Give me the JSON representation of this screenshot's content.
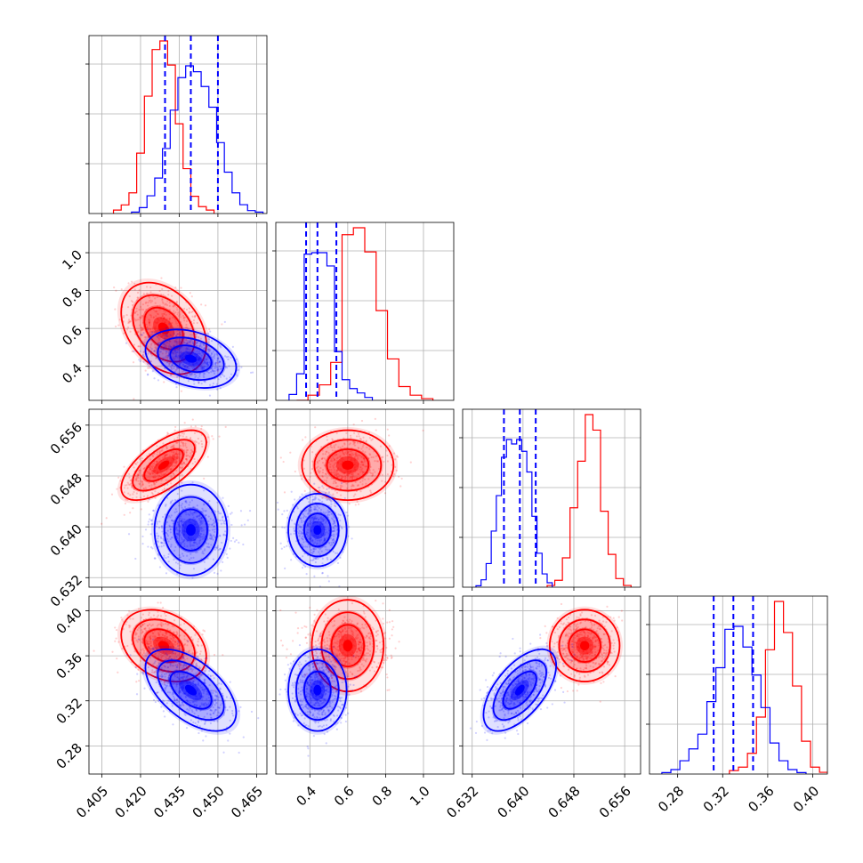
{
  "chart_data": {
    "type": "corner",
    "n_params": 4,
    "grid": true,
    "colors": {
      "series_a": "#ff0000",
      "series_b": "#0000ff",
      "frame": "#000000",
      "grid": "#b0b0b0"
    },
    "series": [
      {
        "color": "#ff0000",
        "params": [
          {
            "mean": 0.429,
            "sd": 0.0075
          },
          {
            "mean": 0.6,
            "sd": 0.11
          },
          {
            "mean": 0.6497,
            "sd": 0.0025
          },
          {
            "mean": 0.369,
            "sd": 0.0145
          }
        ],
        "corr": [
          [
            1,
            -0.35,
            0.65,
            -0.3
          ],
          [
            -0.35,
            1,
            0,
            0
          ],
          [
            0.65,
            0,
            1,
            0
          ],
          [
            -0.3,
            0,
            0,
            1
          ]
        ],
        "hist1d": [
          {
            "bins": [
              0.4095,
              0.4125,
              0.4155,
              0.4185,
              0.4215,
              0.4245,
              0.4275,
              0.4305,
              0.4335,
              0.4365,
              0.4395,
              0.4425,
              0.4455
            ],
            "counts": [
              2,
              5,
              12,
              35,
              68,
              95,
              100,
              86,
              52,
              26,
              10,
              4,
              2
            ]
          },
          {
            "bins": [
              0.33,
              0.39,
              0.45,
              0.51,
              0.57,
              0.63,
              0.69,
              0.75,
              0.81,
              0.87,
              0.93,
              0.99
            ],
            "counts": [
              0,
              3,
              9,
              22,
              96,
              100,
              86,
              52,
              24,
              8,
              3,
              1
            ]
          },
          {
            "bins": [
              0.6438,
              0.645,
              0.6462,
              0.6474,
              0.6486,
              0.6498,
              0.651,
              0.6522,
              0.6534,
              0.6546,
              0.6558
            ],
            "counts": [
              1,
              4,
              17,
              46,
              73,
              100,
              91,
              44,
              19,
              5,
              1
            ]
          },
          {
            "bins": [
              0.326,
              0.334,
              0.342,
              0.35,
              0.358,
              0.366,
              0.374,
              0.382,
              0.39,
              0.398,
              0.406
            ],
            "counts": [
              2,
              4,
              12,
              33,
              72,
              100,
              82,
              51,
              19,
              4,
              1
            ]
          }
        ]
      },
      {
        "color": "#0000ff",
        "params": [
          {
            "mean": 0.4395,
            "sd": 0.008
          },
          {
            "mean": 0.44,
            "sd": 0.07
          },
          {
            "mean": 0.6395,
            "sd": 0.0026
          },
          {
            "mean": 0.3295,
            "sd": 0.0165
          }
        ],
        "corr": [
          [
            1,
            -0.3,
            0,
            -0.55
          ],
          [
            -0.3,
            1,
            0,
            0
          ],
          [
            0,
            0,
            1,
            0.6
          ],
          [
            -0.55,
            0,
            0.6,
            1
          ]
        ],
        "quantiles": [
          [
            0.4295,
            0.4395,
            0.45
          ],
          [
            0.38,
            0.44,
            0.54
          ],
          [
            0.637,
            0.6395,
            0.642
          ],
          [
            0.312,
            0.3295,
            0.347
          ]
        ],
        "hist1d": [
          {
            "bins": [
              0.4165,
              0.4195,
              0.4225,
              0.4255,
              0.4285,
              0.4315,
              0.4345,
              0.4375,
              0.4405,
              0.4435,
              0.4465,
              0.4495,
              0.4525,
              0.4555,
              0.4585,
              0.4615,
              0.4645
            ],
            "counts": [
              1,
              4,
              12,
              24,
              44,
              70,
              92,
              100,
              96,
              86,
              72,
              48,
              28,
              14,
              6,
              2,
              1
            ]
          },
          {
            "bins": [
              0.29,
              0.33,
              0.37,
              0.41,
              0.45,
              0.49,
              0.53,
              0.57,
              0.61,
              0.65,
              0.69
            ],
            "counts": [
              4,
              18,
              99,
              100,
              100,
              91,
              33,
              14,
              8,
              5,
              2
            ]
          },
          {
            "bins": [
              0.6326,
              0.6334,
              0.6342,
              0.635,
              0.6358,
              0.6366,
              0.6374,
              0.6382,
              0.639,
              0.6398,
              0.6406,
              0.6414,
              0.6422,
              0.643,
              0.6438
            ],
            "counts": [
              1,
              5,
              16,
              38,
              62,
              88,
              100,
              97,
              100,
              92,
              78,
              48,
              23,
              9,
              3
            ]
          },
          {
            "bins": [
              0.266,
              0.274,
              0.282,
              0.29,
              0.298,
              0.306,
              0.314,
              0.322,
              0.33,
              0.338,
              0.346,
              0.354,
              0.362,
              0.37,
              0.378,
              0.386
            ],
            "counts": [
              1,
              3,
              9,
              17,
              27,
              49,
              72,
              98,
              100,
              86,
              67,
              45,
              21,
              9,
              3,
              1
            ]
          }
        ]
      }
    ],
    "axes": [
      {
        "range": [
          0.4,
          0.469
        ],
        "ticks": [
          0.405,
          0.42,
          0.435,
          0.45,
          0.465
        ],
        "tick_labels": [
          "0.405",
          "0.420",
          "0.435",
          "0.450",
          "0.465"
        ]
      },
      {
        "range": [
          0.22,
          1.16
        ],
        "ticks": [
          0.4,
          0.6,
          0.8,
          1.0
        ],
        "tick_labels": [
          "0.4",
          "0.6",
          "0.8",
          "1.0"
        ]
      },
      {
        "range": [
          0.6305,
          0.6585
        ],
        "ticks": [
          0.632,
          0.64,
          0.648,
          0.656
        ],
        "tick_labels": [
          "0.632",
          "0.640",
          "0.648",
          "0.656"
        ]
      },
      {
        "range": [
          0.255,
          0.413
        ],
        "ticks": [
          0.28,
          0.32,
          0.36,
          0.4
        ],
        "tick_labels": [
          "0.28",
          "0.32",
          "0.36",
          "0.40"
        ]
      }
    ]
  }
}
